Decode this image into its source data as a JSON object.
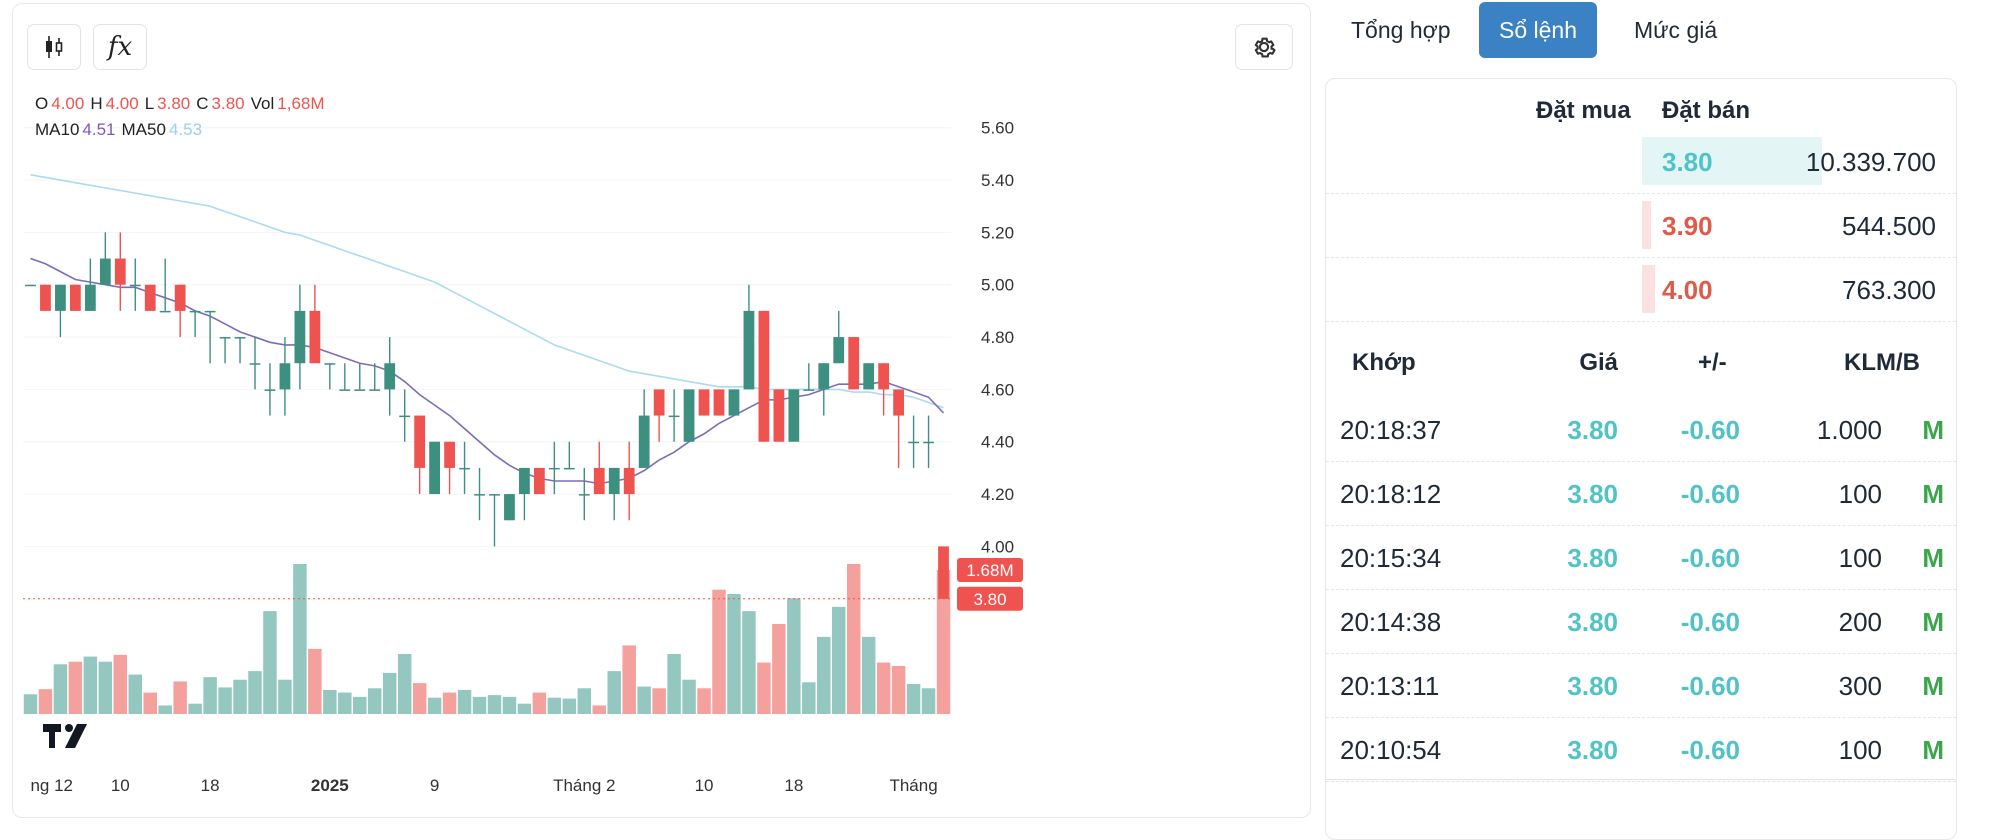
{
  "legend": {
    "o_label": "O",
    "o_value": "4.00",
    "h_label": "H",
    "h_value": "4.00",
    "l_label": "L",
    "l_value": "3.80",
    "c_label": "C",
    "c_value": "3.80",
    "vol_label": "Vol",
    "vol_value": "1,68M",
    "ma10_label": "MA10",
    "ma10_value": "4.51",
    "ma50_label": "MA50",
    "ma50_value": "4.53"
  },
  "toolbar": {
    "candle_icon": "candlestick-icon",
    "fx_icon": "function-icon",
    "fx_glyph": "fx",
    "gear_icon": "gear-icon"
  },
  "colors": {
    "up": "#3d8f80",
    "down": "#ef5350",
    "up_vol": "#94c7bf",
    "down_vol": "#f4a09d",
    "ma10": "#7e6cb8",
    "ma50": "#a9dbf2",
    "accent": "#3b82c4"
  },
  "chart_data": {
    "type": "candlestick",
    "y_ticks": [
      "5.60",
      "5.40",
      "5.20",
      "5.00",
      "4.80",
      "4.60",
      "4.40",
      "4.20",
      "4.00"
    ],
    "ylim": [
      3.78,
      5.66
    ],
    "x_labels": [
      "ng 12",
      "10",
      "18",
      "2025",
      "9",
      "Tháng 2",
      "10",
      "18",
      "Tháng"
    ],
    "current_price_label": "3.80",
    "current_volume_label": "1.68M",
    "candles": [
      [
        5.0,
        5.0,
        5.0,
        5.0
      ],
      [
        5.0,
        5.0,
        4.9,
        4.9
      ],
      [
        4.9,
        5.0,
        4.8,
        5.0
      ],
      [
        5.0,
        5.0,
        4.9,
        4.9
      ],
      [
        4.9,
        5.1,
        4.9,
        5.0
      ],
      [
        5.0,
        5.2,
        5.0,
        5.1
      ],
      [
        5.1,
        5.2,
        4.9,
        5.0
      ],
      [
        5.0,
        5.1,
        4.9,
        5.0
      ],
      [
        5.0,
        5.0,
        4.9,
        4.9
      ],
      [
        4.9,
        5.1,
        4.9,
        4.9
      ],
      [
        5.0,
        5.0,
        4.8,
        4.9
      ],
      [
        4.9,
        4.9,
        4.8,
        4.9
      ],
      [
        4.9,
        4.9,
        4.7,
        4.9
      ],
      [
        4.8,
        4.8,
        4.7,
        4.8
      ],
      [
        4.8,
        4.8,
        4.7,
        4.8
      ],
      [
        4.7,
        4.8,
        4.6,
        4.7
      ],
      [
        4.6,
        4.7,
        4.5,
        4.6
      ],
      [
        4.6,
        4.8,
        4.5,
        4.7
      ],
      [
        4.7,
        5.0,
        4.6,
        4.9
      ],
      [
        4.9,
        5.0,
        4.7,
        4.7
      ],
      [
        4.7,
        4.7,
        4.6,
        4.7
      ],
      [
        4.6,
        4.7,
        4.6,
        4.6
      ],
      [
        4.6,
        4.7,
        4.6,
        4.6
      ],
      [
        4.6,
        4.7,
        4.6,
        4.6
      ],
      [
        4.6,
        4.8,
        4.5,
        4.7
      ],
      [
        4.5,
        4.6,
        4.4,
        4.5
      ],
      [
        4.5,
        4.5,
        4.2,
        4.3
      ],
      [
        4.2,
        4.4,
        4.2,
        4.4
      ],
      [
        4.4,
        4.4,
        4.2,
        4.3
      ],
      [
        4.3,
        4.4,
        4.2,
        4.3
      ],
      [
        4.2,
        4.3,
        4.1,
        4.2
      ],
      [
        4.2,
        4.2,
        4.0,
        4.2
      ],
      [
        4.1,
        4.2,
        4.1,
        4.2
      ],
      [
        4.2,
        4.3,
        4.1,
        4.3
      ],
      [
        4.3,
        4.3,
        4.2,
        4.2
      ],
      [
        4.3,
        4.4,
        4.2,
        4.3
      ],
      [
        4.3,
        4.4,
        4.3,
        4.3
      ],
      [
        4.2,
        4.3,
        4.1,
        4.2
      ],
      [
        4.3,
        4.4,
        4.2,
        4.2
      ],
      [
        4.2,
        4.3,
        4.1,
        4.3
      ],
      [
        4.3,
        4.4,
        4.1,
        4.2
      ],
      [
        4.3,
        4.6,
        4.3,
        4.5
      ],
      [
        4.6,
        4.6,
        4.4,
        4.5
      ],
      [
        4.5,
        4.6,
        4.4,
        4.5
      ],
      [
        4.4,
        4.6,
        4.4,
        4.6
      ],
      [
        4.6,
        4.6,
        4.5,
        4.5
      ],
      [
        4.6,
        4.6,
        4.5,
        4.5
      ],
      [
        4.5,
        4.6,
        4.5,
        4.6
      ],
      [
        4.6,
        5.0,
        4.6,
        4.9
      ],
      [
        4.9,
        4.9,
        4.4,
        4.4
      ],
      [
        4.6,
        4.6,
        4.4,
        4.4
      ],
      [
        4.4,
        4.6,
        4.4,
        4.6
      ],
      [
        4.6,
        4.7,
        4.6,
        4.6
      ],
      [
        4.6,
        4.7,
        4.5,
        4.7
      ],
      [
        4.7,
        4.9,
        4.7,
        4.8
      ],
      [
        4.8,
        4.8,
        4.6,
        4.6
      ],
      [
        4.6,
        4.7,
        4.6,
        4.7
      ],
      [
        4.7,
        4.7,
        4.5,
        4.6
      ],
      [
        4.6,
        4.6,
        4.3,
        4.5
      ],
      [
        4.4,
        4.5,
        4.3,
        4.4
      ],
      [
        4.4,
        4.5,
        4.3,
        4.4
      ],
      [
        4.0,
        4.0,
        3.8,
        3.8
      ]
    ],
    "volumes": [
      0.23,
      0.29,
      0.58,
      0.61,
      0.67,
      0.61,
      0.69,
      0.46,
      0.25,
      0.1,
      0.38,
      0.12,
      0.43,
      0.31,
      0.4,
      0.5,
      1.2,
      0.4,
      1.75,
      0.76,
      0.28,
      0.25,
      0.2,
      0.3,
      0.48,
      0.7,
      0.36,
      0.19,
      0.25,
      0.28,
      0.2,
      0.22,
      0.2,
      0.12,
      0.25,
      0.19,
      0.18,
      0.3,
      0.1,
      0.5,
      0.8,
      0.32,
      0.3,
      0.7,
      0.4,
      0.3,
      1.45,
      1.4,
      1.2,
      0.6,
      1.05,
      1.35,
      0.37,
      0.9,
      1.25,
      1.75,
      0.9,
      0.6,
      0.56,
      0.35,
      0.3,
      1.68
    ],
    "ma10": [
      5.1,
      5.08,
      5.05,
      5.02,
      5.01,
      5.0,
      4.99,
      4.99,
      4.97,
      4.95,
      4.93,
      4.9,
      4.88,
      4.85,
      4.82,
      4.8,
      4.78,
      4.77,
      4.77,
      4.76,
      4.74,
      4.72,
      4.7,
      4.69,
      4.67,
      4.63,
      4.58,
      4.54,
      4.5,
      4.45,
      4.4,
      4.35,
      4.31,
      4.28,
      4.26,
      4.25,
      4.25,
      4.25,
      4.24,
      4.25,
      4.26,
      4.29,
      4.33,
      4.36,
      4.4,
      4.43,
      4.47,
      4.5,
      4.53,
      4.56,
      4.56,
      4.57,
      4.58,
      4.6,
      4.62,
      4.62,
      4.62,
      4.63,
      4.61,
      4.59,
      4.57,
      4.51
    ],
    "ma50": [
      5.42,
      5.41,
      5.4,
      5.39,
      5.38,
      5.37,
      5.36,
      5.35,
      5.34,
      5.33,
      5.32,
      5.31,
      5.3,
      5.28,
      5.26,
      5.24,
      5.22,
      5.2,
      5.19,
      5.17,
      5.15,
      5.13,
      5.11,
      5.09,
      5.07,
      5.05,
      5.03,
      5.01,
      4.98,
      4.95,
      4.92,
      4.89,
      4.86,
      4.83,
      4.8,
      4.77,
      4.75,
      4.73,
      4.71,
      4.69,
      4.67,
      4.66,
      4.65,
      4.64,
      4.63,
      4.62,
      4.61,
      4.61,
      4.61,
      4.6,
      4.6,
      4.6,
      4.6,
      4.6,
      4.6,
      4.59,
      4.59,
      4.58,
      4.58,
      4.57,
      4.55,
      4.53
    ]
  },
  "tabs": {
    "summary": "Tổng hợp",
    "orderbook": "Sổ lệnh",
    "price": "Mức giá"
  },
  "orderbook": {
    "bid_header": "Đặt mua",
    "ask_header": "Đặt bán",
    "asks": [
      {
        "price": "3.80",
        "volume": "10.339.700",
        "color": "#4fc3c7",
        "bar_color": "#e4f5f5",
        "depth": 1.0
      },
      {
        "price": "3.90",
        "volume": "544.500",
        "color": "#e05a4a",
        "bar_color": "#fbe1e0",
        "depth": 0.05
      },
      {
        "price": "4.00",
        "volume": "763.300",
        "color": "#e05a4a",
        "bar_color": "#fbe1e0",
        "depth": 0.07
      }
    ]
  },
  "trades": {
    "headers": {
      "time": "Khớp",
      "price": "Giá",
      "change": "+/-",
      "volume": "KLM/B"
    },
    "rows": [
      {
        "time": "20:18:37",
        "price": "3.80",
        "change": "-0.60",
        "volume": "1.000",
        "side": "M"
      },
      {
        "time": "20:18:12",
        "price": "3.80",
        "change": "-0.60",
        "volume": "100",
        "side": "M"
      },
      {
        "time": "20:15:34",
        "price": "3.80",
        "change": "-0.60",
        "volume": "100",
        "side": "M"
      },
      {
        "time": "20:14:38",
        "price": "3.80",
        "change": "-0.60",
        "volume": "200",
        "side": "M"
      },
      {
        "time": "20:13:11",
        "price": "3.80",
        "change": "-0.60",
        "volume": "300",
        "side": "M"
      },
      {
        "time": "20:10:54",
        "price": "3.80",
        "change": "-0.60",
        "volume": "100",
        "side": "M"
      }
    ]
  }
}
